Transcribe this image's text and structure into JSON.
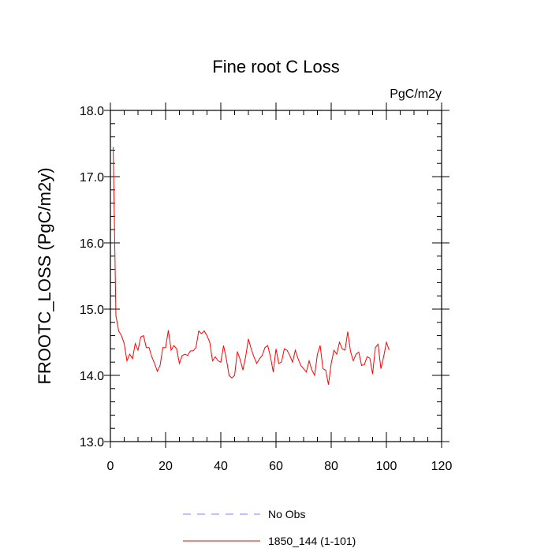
{
  "chart_data": {
    "type": "line",
    "title": "Fine root C Loss",
    "units_label": "PgC/m2y",
    "xlabel": "",
    "ylabel": "FROOTC_LOSS  (PgC/m2y)",
    "xlim": [
      0,
      120
    ],
    "ylim": [
      13.0,
      18.0
    ],
    "xticks": [
      0,
      20,
      40,
      60,
      80,
      100,
      120
    ],
    "xtick_labels": [
      "0",
      "20",
      "40",
      "60",
      "80",
      "100",
      "120"
    ],
    "yticks": [
      13.0,
      14.0,
      15.0,
      16.0,
      17.0,
      18.0
    ],
    "ytick_labels": [
      "13.0",
      "14.0",
      "15.0",
      "16.0",
      "17.0",
      "18.0"
    ],
    "grid": false,
    "legend_position": "bottom-center",
    "series": [
      {
        "name": "No Obs",
        "color": "#8080ff",
        "dash": true,
        "x": [],
        "values": []
      },
      {
        "name": "1850_144 (1-101)",
        "color": "#ff0000",
        "dash": false,
        "x": [
          1,
          2,
          3,
          4,
          5,
          6,
          7,
          8,
          9,
          10,
          11,
          12,
          13,
          14,
          15,
          16,
          17,
          18,
          19,
          20,
          21,
          22,
          23,
          24,
          25,
          26,
          27,
          28,
          29,
          30,
          31,
          32,
          33,
          34,
          35,
          36,
          37,
          38,
          39,
          40,
          41,
          42,
          43,
          44,
          45,
          46,
          47,
          48,
          49,
          50,
          51,
          52,
          53,
          54,
          55,
          56,
          57,
          58,
          59,
          60,
          61,
          62,
          63,
          64,
          65,
          66,
          67,
          68,
          69,
          70,
          71,
          72,
          73,
          74,
          75,
          76,
          77,
          78,
          79,
          80,
          81,
          82,
          83,
          84,
          85,
          86,
          87,
          88,
          89,
          90,
          91,
          92,
          93,
          94,
          95,
          96,
          97,
          98,
          99,
          100,
          101
        ],
        "values": [
          17.45,
          14.9,
          14.67,
          14.6,
          14.48,
          14.22,
          14.32,
          14.25,
          14.48,
          14.38,
          14.58,
          14.6,
          14.42,
          14.42,
          14.28,
          14.18,
          14.06,
          14.15,
          14.42,
          14.42,
          14.68,
          14.38,
          14.45,
          14.4,
          14.18,
          14.3,
          14.32,
          14.3,
          14.37,
          14.37,
          14.42,
          14.67,
          14.63,
          14.67,
          14.6,
          14.5,
          14.22,
          14.28,
          14.22,
          14.2,
          14.45,
          14.25,
          14.0,
          13.96,
          14.0,
          14.36,
          14.24,
          14.08,
          14.28,
          14.55,
          14.4,
          14.28,
          14.18,
          14.25,
          14.3,
          14.42,
          14.45,
          14.28,
          14.05,
          14.4,
          14.18,
          14.2,
          14.4,
          14.38,
          14.3,
          14.2,
          14.38,
          14.25,
          14.15,
          14.1,
          14.05,
          14.22,
          14.08,
          14.0,
          14.32,
          14.45,
          14.1,
          14.08,
          13.86,
          14.18,
          14.38,
          14.32,
          14.5,
          14.4,
          14.38,
          14.66,
          14.36,
          14.22,
          14.32,
          14.35,
          14.15,
          14.16,
          14.28,
          14.26,
          14.02,
          14.42,
          14.47,
          14.1,
          14.28,
          14.5,
          14.38
        ]
      }
    ]
  }
}
